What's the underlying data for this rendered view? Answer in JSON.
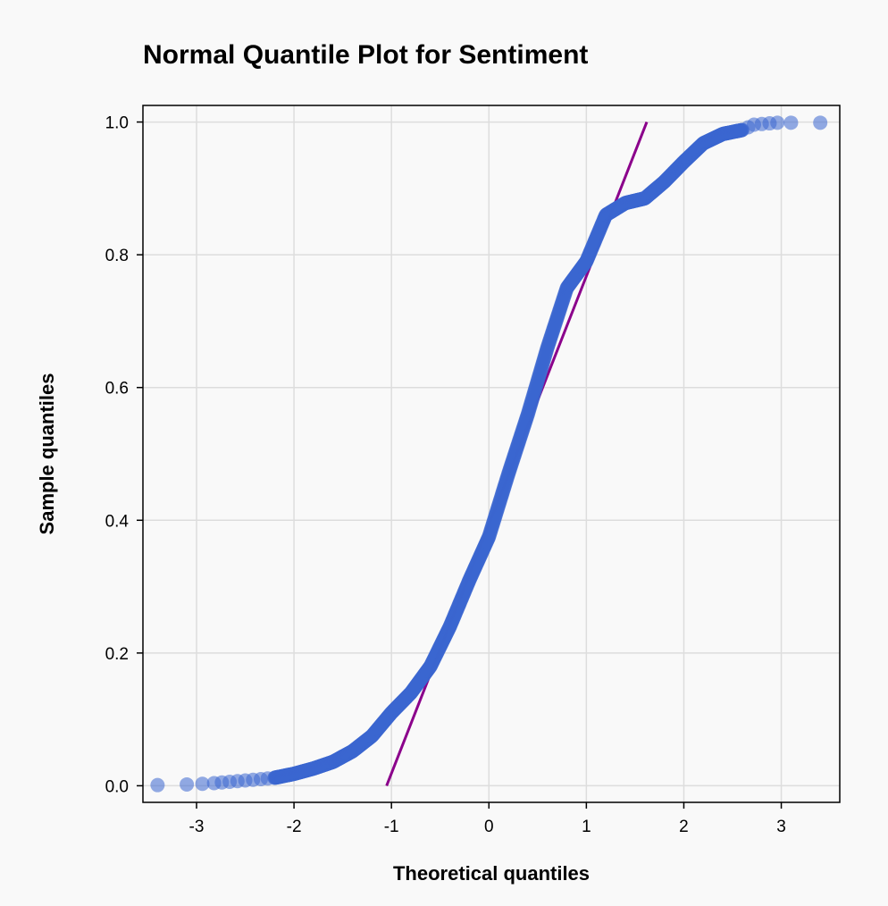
{
  "chart_data": {
    "type": "scatter",
    "title": "Normal Quantile Plot for Sentiment",
    "xlabel": "Theoretical quantiles",
    "ylabel": "Sample quantiles",
    "xlim": [
      -3.55,
      3.6
    ],
    "ylim": [
      -0.025,
      1.025
    ],
    "x_ticks": [
      -3,
      -2,
      -1,
      0,
      1,
      2,
      3
    ],
    "y_ticks": [
      0.0,
      0.2,
      0.4,
      0.6,
      0.8,
      1.0
    ],
    "x_tick_labels": [
      "-3",
      "-2",
      "-1",
      "0",
      "1",
      "2",
      "3"
    ],
    "y_tick_labels": [
      "0.0",
      "0.2",
      "0.4",
      "0.6",
      "0.8",
      "1.0"
    ],
    "grid": true,
    "colors": {
      "points": "#3a66d0",
      "reference_line": "#8b008b",
      "grid": "#dddddd",
      "background": "#f9f9f9"
    },
    "reference_line": {
      "x": [
        -1.05,
        1.62
      ],
      "y": [
        0.0,
        1.0
      ]
    },
    "quantile_curve": {
      "x": [
        -2.2,
        -2.0,
        -1.8,
        -1.6,
        -1.4,
        -1.2,
        -1.0,
        -0.8,
        -0.6,
        -0.4,
        -0.2,
        0.0,
        0.2,
        0.4,
        0.6,
        0.8,
        1.0,
        1.2,
        1.4,
        1.6,
        1.8,
        2.0,
        2.2,
        2.4,
        2.6
      ],
      "y": [
        0.012,
        0.018,
        0.026,
        0.036,
        0.052,
        0.075,
        0.11,
        0.14,
        0.18,
        0.24,
        0.31,
        0.375,
        0.47,
        0.56,
        0.66,
        0.75,
        0.79,
        0.86,
        0.878,
        0.885,
        0.91,
        0.94,
        0.968,
        0.982,
        0.988
      ],
      "n_points": 900
    },
    "points": [
      {
        "x": -3.4,
        "y": 0.001
      },
      {
        "x": -3.1,
        "y": 0.002
      },
      {
        "x": -2.94,
        "y": 0.003
      },
      {
        "x": -2.82,
        "y": 0.004
      },
      {
        "x": -2.74,
        "y": 0.005
      },
      {
        "x": -2.66,
        "y": 0.006
      },
      {
        "x": -2.58,
        "y": 0.007
      },
      {
        "x": -2.5,
        "y": 0.008
      },
      {
        "x": -2.42,
        "y": 0.009
      },
      {
        "x": -2.34,
        "y": 0.01
      },
      {
        "x": -2.27,
        "y": 0.011
      },
      {
        "x": 2.66,
        "y": 0.992
      },
      {
        "x": 2.72,
        "y": 0.996
      },
      {
        "x": 2.8,
        "y": 0.997
      },
      {
        "x": 2.88,
        "y": 0.998
      },
      {
        "x": 2.96,
        "y": 0.999
      },
      {
        "x": 3.1,
        "y": 0.999
      },
      {
        "x": 3.4,
        "y": 0.999
      }
    ]
  }
}
